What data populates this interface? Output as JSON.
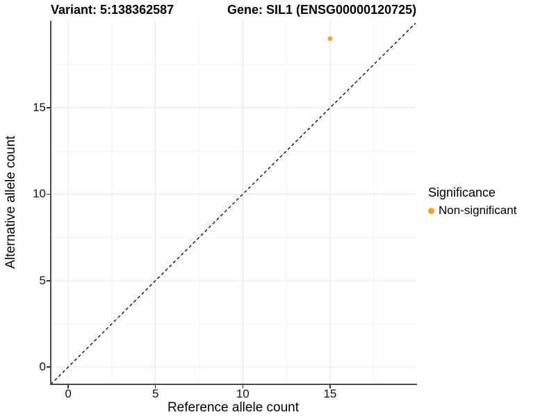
{
  "chart_data": {
    "type": "scatter",
    "title_variant": "Variant: 5:138362587",
    "title_gene": "Gene: SIL1 (ENSG00000120725)",
    "xlabel": "Reference allele count",
    "ylabel": "Alternative allele count",
    "xlim": [
      -1,
      19.9
    ],
    "ylim": [
      -1,
      20.03
    ],
    "x_major_ticks": [
      0,
      5,
      10,
      15
    ],
    "x_minor_ticks": [
      2.5,
      7.5,
      12.5,
      17.5
    ],
    "y_major_ticks": [
      0,
      5,
      10,
      15
    ],
    "y_minor_ticks": [
      2.5,
      7.5,
      12.5,
      17.5
    ],
    "grid": "major+minor",
    "identity_line": {
      "style": "dashed",
      "color": "#000000"
    },
    "series": [
      {
        "name": "Non-significant",
        "color": "#F9A02B",
        "points": [
          {
            "x": 15,
            "y": 19
          }
        ]
      }
    ],
    "legend": {
      "title": "Significance",
      "position": "right",
      "items": [
        {
          "label": "Non-significant",
          "color": "#F9A02B"
        }
      ]
    },
    "colors": {
      "grid_major": "#e4e4e4",
      "grid_minor": "#f1f1f1",
      "axis_line": "#4a4a4a",
      "tick_mark": "#333333",
      "text": "#000000"
    }
  }
}
